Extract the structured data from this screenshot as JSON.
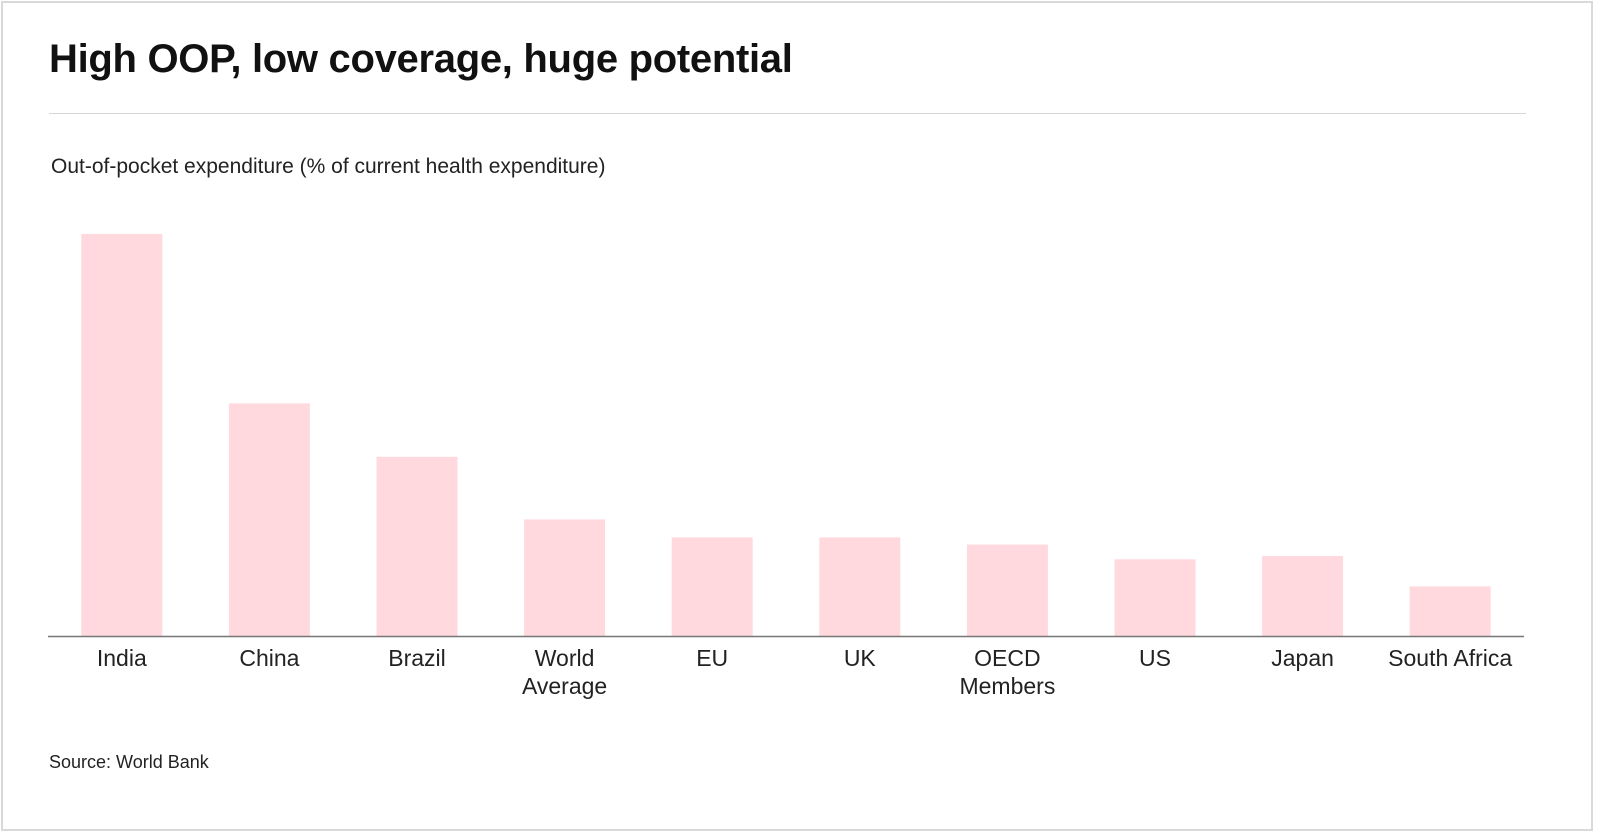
{
  "page": {
    "title": "High OOP, low coverage, huge potential",
    "subtitle": "Out-of-pocket expenditure (% of current health expenditure)",
    "source": "Source: World Bank"
  },
  "chart_data": {
    "type": "bar",
    "categories": [
      "India",
      "China",
      "Brazil",
      "World Average",
      "EU",
      "UK",
      "OECD Members",
      "US",
      "Japan",
      "South Africa"
    ],
    "category_label_lines": [
      [
        "India"
      ],
      [
        "China"
      ],
      [
        "Brazil"
      ],
      [
        "World",
        "Average"
      ],
      [
        "EU"
      ],
      [
        "UK"
      ],
      [
        "OECD",
        "Members"
      ],
      [
        "US"
      ],
      [
        "Japan"
      ],
      [
        "South Africa"
      ]
    ],
    "values": [
      62.4,
      36.1,
      27.8,
      18.1,
      15.3,
      15.3,
      14.2,
      11.9,
      12.4,
      7.7
    ],
    "ylim": [
      0,
      63
    ],
    "bar_color": "#ffd9de",
    "axis_color": "#777777",
    "grid": false,
    "title": "High OOP, low coverage, huge potential",
    "xlabel": "",
    "ylabel": "Out-of-pocket expenditure (% of current health expenditure)"
  }
}
